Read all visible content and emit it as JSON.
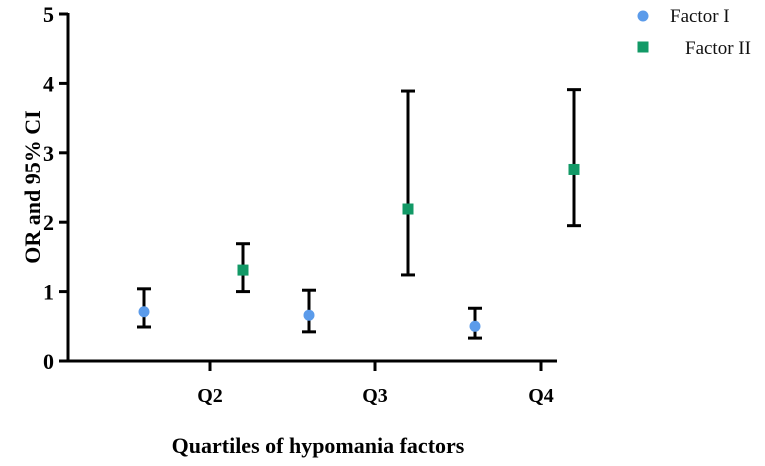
{
  "chart_data": {
    "type": "scatter",
    "title": "",
    "xlabel": "Quartiles of hypomania factors",
    "ylabel": "OR and 95% CI",
    "categories": [
      "Q2",
      "Q3",
      "Q4"
    ],
    "ylim": [
      0,
      5
    ],
    "yticks": [
      0,
      1,
      2,
      3,
      4,
      5
    ],
    "grid": false,
    "legend_position": "top-right",
    "series": [
      {
        "name": "Factor I",
        "marker": "circle",
        "color": "#5b9bea",
        "values": [
          0.71,
          0.66,
          0.5
        ],
        "ci_lower": [
          0.49,
          0.42,
          0.33
        ],
        "ci_upper": [
          1.04,
          1.02,
          0.76
        ]
      },
      {
        "name": "Factor II",
        "marker": "square",
        "color": "#129966",
        "values": [
          1.31,
          2.19,
          2.76
        ],
        "ci_lower": [
          1.0,
          1.24,
          1.95
        ],
        "ci_upper": [
          1.69,
          3.89,
          3.91
        ]
      }
    ]
  }
}
